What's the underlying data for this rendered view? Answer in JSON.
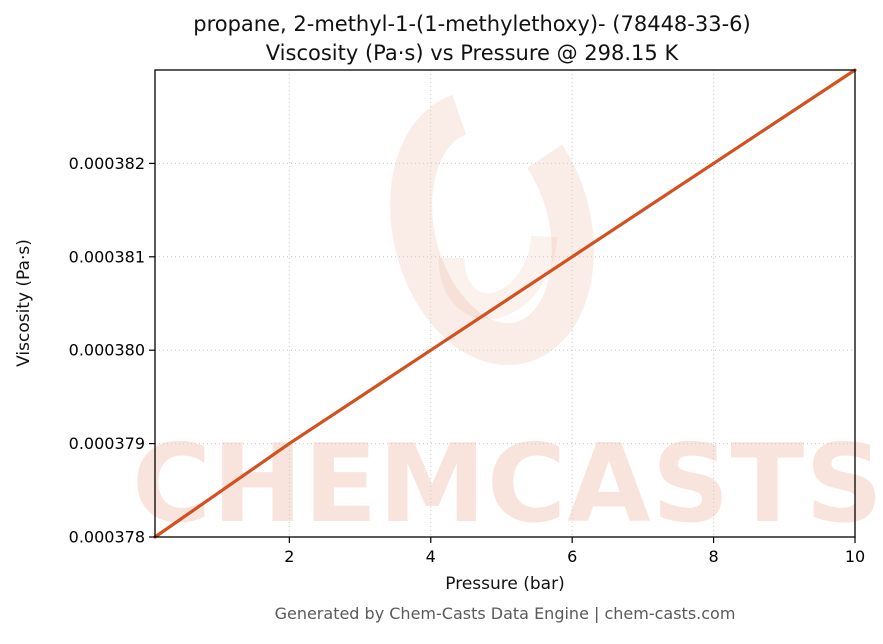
{
  "title": {
    "line1": "propane, 2-methyl-1-(1-methylethoxy)- (78448-33-6)",
    "line2": "Viscosity (Pa·s) vs Pressure @ 298.15 K"
  },
  "footer": "Generated by Chem-Casts Data Engine | chem-casts.com",
  "watermark": {
    "text": "CHEMCASTS"
  },
  "colors": {
    "line": "#d2511e",
    "watermark": "#d2511e",
    "grid": "#c9c9c9",
    "spine": "#000000",
    "tick_text": "#000000",
    "footer_text": "#5a5a5a"
  },
  "chart_data": {
    "type": "line",
    "title": "propane, 2-methyl-1-(1-methylethoxy)- (78448-33-6) — Viscosity (Pa·s) vs Pressure @ 298.15 K",
    "xlabel": "Pressure (bar)",
    "ylabel": "Viscosity (Pa·s)",
    "xlim": [
      0.1,
      10
    ],
    "ylim": [
      0.000378,
      0.000383
    ],
    "grid": true,
    "legend_position": "none",
    "x": [
      0.1,
      2,
      4,
      6,
      8,
      10
    ],
    "series": [
      {
        "name": "Viscosity (Pa·s)",
        "color": "#d2511e",
        "values": [
          0.000378,
          0.000379,
          0.00038,
          0.000381,
          0.000382,
          0.000383
        ]
      }
    ],
    "x_ticks": {
      "values": [
        2,
        4,
        6,
        8,
        10
      ],
      "labels": [
        "2",
        "4",
        "6",
        "8",
        "10"
      ]
    },
    "y_ticks": {
      "values": [
        0.000378,
        0.000379,
        0.00038,
        0.000381,
        0.000382
      ],
      "labels": [
        "0.000378",
        "0.000379",
        "0.000380",
        "0.000381",
        "0.000382"
      ]
    }
  }
}
